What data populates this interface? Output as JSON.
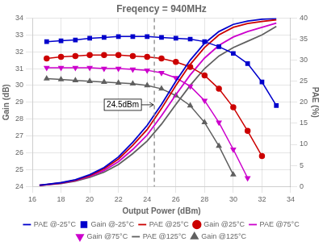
{
  "chart_data": {
    "type": "line",
    "title": "Freqency = 940MHz",
    "xlabel": "Output Power (dBm)",
    "ylabel": "Gain (dB)",
    "y2label": "PAE (%)",
    "xlim": [
      16,
      34
    ],
    "xticks": [
      16,
      18,
      20,
      22,
      24,
      26,
      28,
      30,
      32,
      34
    ],
    "ylim": [
      24,
      34
    ],
    "yticks": [
      24,
      25,
      26,
      27,
      28,
      29,
      30,
      31,
      32,
      33,
      34
    ],
    "y2lim": [
      0,
      40
    ],
    "y2ticks": [
      0,
      5,
      10,
      15,
      20,
      25,
      30,
      35,
      40
    ],
    "grid": true,
    "legend": "bottom",
    "vlines": [
      {
        "x": 24.5,
        "line_style": "dashed",
        "color": "gray"
      }
    ],
    "annotations": [
      {
        "text": "24.5dBm",
        "x": 24.5,
        "y": 28.85
      }
    ],
    "series": [
      {
        "name": "PAE @-25°C",
        "color": "#0000cc",
        "axis": "y2",
        "x": [
          16.5,
          17,
          18,
          19,
          20,
          21,
          22,
          23,
          24,
          25,
          26,
          27,
          28,
          29,
          30,
          31,
          32,
          33
        ],
        "values": [
          0.3,
          0.5,
          0.9,
          1.6,
          2.8,
          4.5,
          7.0,
          10.5,
          14.5,
          19.5,
          25.0,
          30.0,
          34.0,
          36.8,
          38.5,
          39.3,
          39.7,
          39.9
        ]
      },
      {
        "name": "Gain @-25°C",
        "color": "#0000cc",
        "marker": "square",
        "x": [
          17,
          18,
          19,
          20,
          21,
          22,
          23,
          24,
          25,
          26,
          27,
          28,
          29,
          30,
          31,
          32,
          33
        ],
        "values": [
          32.6,
          32.65,
          32.7,
          32.8,
          32.85,
          32.9,
          32.9,
          32.9,
          32.85,
          32.8,
          32.75,
          32.6,
          32.3,
          31.9,
          31.3,
          30.2,
          28.8
        ]
      },
      {
        "name": "PAE @25°C",
        "color": "#cc0000",
        "axis": "y2",
        "x": [
          16.5,
          17,
          18,
          19,
          20,
          21,
          22,
          23,
          24,
          25,
          26,
          27,
          28,
          29,
          30,
          31,
          32,
          33
        ],
        "values": [
          0.28,
          0.45,
          0.85,
          1.5,
          2.6,
          4.2,
          6.5,
          9.8,
          13.5,
          18.5,
          24.0,
          29.0,
          33.0,
          36.0,
          37.8,
          38.7,
          39.2,
          39.6
        ]
      },
      {
        "name": "Gain @25°C",
        "color": "#cc0000",
        "marker": "circle",
        "x": [
          17,
          18,
          19,
          20,
          21,
          22,
          23,
          24,
          25,
          26,
          27,
          28,
          29,
          30,
          31,
          32
        ],
        "values": [
          31.6,
          31.7,
          31.75,
          31.8,
          31.8,
          31.8,
          31.75,
          31.7,
          31.6,
          31.4,
          31.1,
          30.6,
          29.8,
          28.7,
          27.3,
          25.8
        ]
      },
      {
        "name": "PAE @75°C",
        "color": "#cc00cc",
        "axis": "y2",
        "x": [
          16.5,
          17,
          18,
          19,
          20,
          21,
          22,
          23,
          24,
          25,
          26,
          27,
          28,
          29,
          30,
          31,
          32,
          33
        ],
        "values": [
          0.25,
          0.42,
          0.78,
          1.4,
          2.4,
          3.8,
          5.9,
          8.8,
          12.2,
          16.8,
          21.8,
          26.5,
          30.5,
          33.5,
          35.5,
          36.8,
          37.8,
          38.8
        ]
      },
      {
        "name": "Gain @75°C",
        "color": "#cc00cc",
        "marker": "triangle_down",
        "x": [
          17,
          18,
          19,
          20,
          21,
          22,
          23,
          24,
          25,
          26,
          27,
          28,
          29,
          30,
          31
        ],
        "values": [
          31.05,
          31.05,
          31.05,
          31.05,
          31.0,
          31.0,
          30.95,
          30.9,
          30.75,
          30.45,
          29.95,
          29.1,
          27.8,
          26.2,
          24.5
        ]
      },
      {
        "name": "PAE @125°C",
        "color": "#606060",
        "axis": "y2",
        "x": [
          16.5,
          17,
          18,
          19,
          20,
          21,
          22,
          23,
          24,
          25,
          26,
          27,
          28,
          29,
          30,
          31,
          32,
          33
        ],
        "values": [
          0.22,
          0.38,
          0.7,
          1.25,
          2.15,
          3.4,
          5.2,
          7.8,
          10.8,
          14.8,
          19.5,
          24.0,
          28.0,
          31.0,
          33.0,
          34.5,
          36.0,
          38.0
        ]
      },
      {
        "name": "Gain @125°C",
        "color": "#606060",
        "marker": "triangle",
        "x": [
          17,
          18,
          19,
          20,
          21,
          22,
          23,
          24,
          25,
          26,
          27,
          28,
          29,
          30
        ],
        "values": [
          30.4,
          30.35,
          30.3,
          30.25,
          30.2,
          30.15,
          30.1,
          30.0,
          29.8,
          29.4,
          28.8,
          27.8,
          26.4,
          24.7
        ]
      }
    ]
  }
}
